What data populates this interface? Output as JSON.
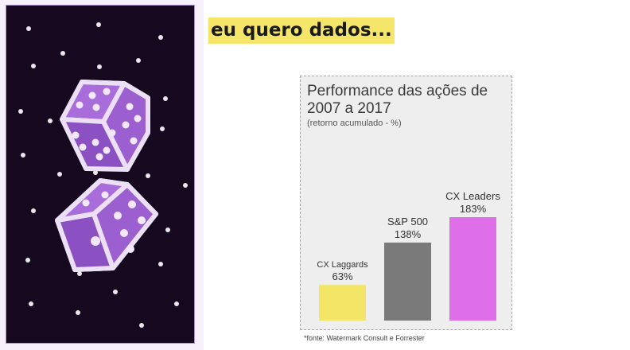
{
  "headline": "eu quero dados...",
  "illustration": {
    "icon": "dice-icon",
    "background_color": "#16081f",
    "dice_color": "#9b5fcf",
    "dice_edge_color": "#ece0f7"
  },
  "chart_data": {
    "type": "bar",
    "title": "Performance das ações de 2007 a 2017",
    "subtitle": "(retorno acumulado - %)",
    "categories": [
      "CX Laggards",
      "S&P 500",
      "CX Leaders"
    ],
    "values": [
      63,
      138,
      183
    ],
    "value_labels": [
      "63%",
      "138%",
      "183%"
    ],
    "colors": [
      "#f3e566",
      "#7a7a7a",
      "#df6fe8"
    ],
    "ylim": [
      0,
      200
    ],
    "grid": false,
    "legend": "none"
  },
  "source_note": "*fonte: Watermark Consult e Forrester"
}
